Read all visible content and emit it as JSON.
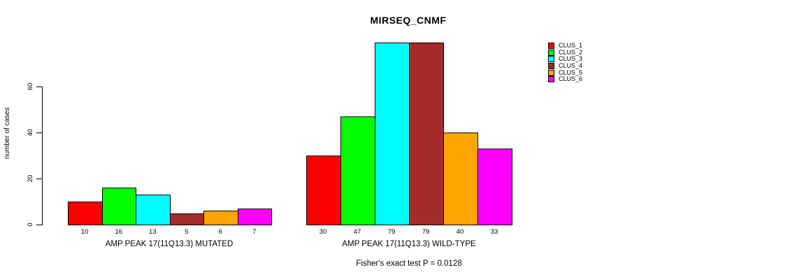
{
  "chart_data": {
    "type": "bar",
    "title": "MIRSEQ_CNMF",
    "ylabel": "number of cases",
    "xlabel": "",
    "ylim": [
      0,
      60
    ],
    "y_ticks": [
      0,
      20,
      40,
      60
    ],
    "grid": false,
    "legend_position": "right",
    "categories": [
      "CLUS_1",
      "CLUS_2",
      "CLUS_3",
      "CLUS_4",
      "CLUS_5",
      "CLUS_6"
    ],
    "colors": [
      "#FF0000",
      "#00FF00",
      "#00FFFF",
      "#A52A2A",
      "#FFA500",
      "#FF00FF"
    ],
    "groups": [
      {
        "label": "AMP PEAK 17(11Q13.3) MUTATED",
        "values": [
          10,
          16,
          13,
          5,
          6,
          7
        ]
      },
      {
        "label": "AMP PEAK 17(11Q13.3) WILD-TYPE",
        "values": [
          30,
          47,
          79,
          79,
          40,
          33
        ]
      }
    ],
    "annotation": "Fisher's exact test P = 0.0128"
  },
  "legend": {
    "entries": [
      {
        "label": "CLUS_1",
        "color": "#FF0000"
      },
      {
        "label": "CLUS_2",
        "color": "#00FF00"
      },
      {
        "label": "CLUS_3",
        "color": "#00FFFF"
      },
      {
        "label": "CLUS_4",
        "color": "#A52A2A"
      },
      {
        "label": "CLUS_5",
        "color": "#FFA500"
      },
      {
        "label": "CLUS_6",
        "color": "#FF00FF"
      }
    ]
  }
}
